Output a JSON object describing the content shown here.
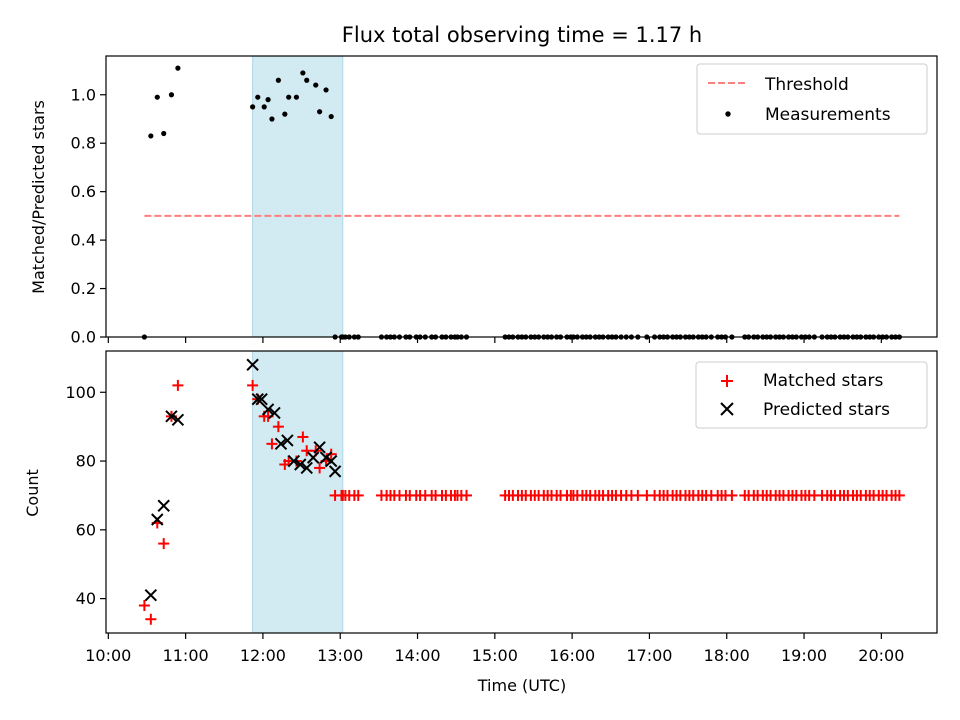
{
  "figure": {
    "title": "Flux total observing time = 1.17 h"
  },
  "chart_data": [
    {
      "type": "scatter",
      "panel": "top",
      "ylabel": "Matched/Predicted stars",
      "ylim": [
        0,
        1.16
      ],
      "xlim_hours": [
        9.97,
        20.72
      ],
      "yticks": [
        0.0,
        0.2,
        0.4,
        0.6,
        0.8,
        1.0
      ],
      "ytick_labels": [
        "0.0",
        "0.2",
        "0.4",
        "0.6",
        "0.8",
        "1.0"
      ],
      "legend_position": "top-right",
      "shaded_interval": {
        "from": "11:52",
        "to": "13:02",
        "color": "#add8e6"
      },
      "threshold": {
        "name": "Threshold",
        "y": 0.5,
        "from": "10:28",
        "to": "20:14",
        "color": "#ff7f7f"
      },
      "series": [
        {
          "name": "Measurements",
          "color": "#000000",
          "marker": "dot",
          "x": [
            "10:28",
            "10:33",
            "10:38",
            "10:43",
            "10:49",
            "10:54",
            "11:52",
            "11:56",
            "12:01",
            "12:04",
            "12:07",
            "12:12",
            "12:17",
            "12:20",
            "12:26",
            "12:31",
            "12:34",
            "12:41",
            "12:44",
            "12:49",
            "12:53",
            "12:56",
            "13:01",
            "13:02",
            "13:04",
            "13:07",
            "13:11",
            "13:14",
            "13:32",
            "13:36",
            "13:39",
            "13:42",
            "13:46",
            "13:51",
            "13:54",
            "13:59",
            "14:02",
            "14:06",
            "14:11",
            "14:14",
            "14:19",
            "14:22",
            "14:26",
            "14:29",
            "14:31",
            "14:34",
            "14:38",
            "15:08",
            "15:11",
            "15:14",
            "15:18",
            "15:21",
            "15:24",
            "15:28",
            "15:31",
            "15:34",
            "15:38",
            "15:41",
            "15:44",
            "15:48",
            "15:51",
            "15:56",
            "15:59",
            "16:01",
            "16:04",
            "16:08",
            "16:11",
            "16:14",
            "16:18",
            "16:21",
            "16:24",
            "16:28",
            "16:31",
            "16:34",
            "16:38",
            "16:42",
            "16:46",
            "16:51",
            "16:58",
            "17:04",
            "17:08",
            "17:11",
            "17:14",
            "17:18",
            "17:21",
            "17:24",
            "17:28",
            "17:31",
            "17:34",
            "17:38",
            "17:41",
            "17:44",
            "17:48",
            "17:53",
            "17:56",
            "17:59",
            "18:04",
            "18:14",
            "18:17",
            "18:21",
            "18:24",
            "18:28",
            "18:31",
            "18:34",
            "18:38",
            "18:41",
            "18:44",
            "18:48",
            "18:51",
            "18:54",
            "18:58",
            "19:01",
            "19:04",
            "19:08",
            "19:14",
            "19:18",
            "19:21",
            "19:24",
            "19:28",
            "19:31",
            "19:34",
            "19:38",
            "19:41",
            "19:44",
            "19:48",
            "19:51",
            "19:54",
            "19:58",
            "20:01",
            "20:04",
            "20:08",
            "20:11",
            "20:14"
          ],
          "y": [
            0.0,
            0.83,
            0.99,
            0.84,
            1.0,
            1.11,
            0.95,
            0.99,
            0.95,
            0.98,
            0.9,
            1.06,
            0.92,
            0.99,
            0.99,
            1.09,
            1.06,
            1.04,
            0.93,
            1.02,
            0.91,
            0.0,
            0.0,
            0.0,
            0.0,
            0.0,
            0.0,
            0.0,
            0.0,
            0.0,
            0.0,
            0.0,
            0.0,
            0.0,
            0.0,
            0.0,
            0.0,
            0.0,
            0.0,
            0.0,
            0.0,
            0.0,
            0.0,
            0.0,
            0.0,
            0.0,
            0.0,
            0.0,
            0.0,
            0.0,
            0.0,
            0.0,
            0.0,
            0.0,
            0.0,
            0.0,
            0.0,
            0.0,
            0.0,
            0.0,
            0.0,
            0.0,
            0.0,
            0.0,
            0.0,
            0.0,
            0.0,
            0.0,
            0.0,
            0.0,
            0.0,
            0.0,
            0.0,
            0.0,
            0.0,
            0.0,
            0.0,
            0.0,
            0.0,
            0.0,
            0.0,
            0.0,
            0.0,
            0.0,
            0.0,
            0.0,
            0.0,
            0.0,
            0.0,
            0.0,
            0.0,
            0.0,
            0.0,
            0.0,
            0.0,
            0.0,
            0.0,
            0.0,
            0.0,
            0.0,
            0.0,
            0.0,
            0.0,
            0.0,
            0.0,
            0.0,
            0.0,
            0.0,
            0.0,
            0.0,
            0.0,
            0.0,
            0.0,
            0.0,
            0.0,
            0.0,
            0.0,
            0.0,
            0.0,
            0.0,
            0.0,
            0.0,
            0.0,
            0.0,
            0.0,
            0.0,
            0.0,
            0.0,
            0.0,
            0.0,
            0.0,
            0.0,
            0.0
          ]
        }
      ]
    },
    {
      "type": "scatter",
      "panel": "bottom",
      "xlabel": "Time (UTC)",
      "ylabel": "Count",
      "ylim": [
        30,
        112
      ],
      "xlim_hours": [
        9.97,
        20.72
      ],
      "yticks": [
        40,
        60,
        80,
        100
      ],
      "ytick_labels": [
        "40",
        "60",
        "80",
        "100"
      ],
      "xticks": [
        "10:00",
        "11:00",
        "12:00",
        "13:00",
        "14:00",
        "15:00",
        "16:00",
        "17:00",
        "18:00",
        "19:00",
        "20:00"
      ],
      "legend_position": "top-right",
      "shaded_interval": {
        "from": "11:52",
        "to": "13:02",
        "color": "#add8e6"
      },
      "series": [
        {
          "name": "Matched stars",
          "color": "#ff0000",
          "marker": "plus",
          "x": [
            "10:28",
            "10:33",
            "10:38",
            "10:43",
            "10:49",
            "10:54",
            "11:52",
            "11:56",
            "12:01",
            "12:04",
            "12:07",
            "12:12",
            "12:17",
            "12:20",
            "12:26",
            "12:31",
            "12:34",
            "12:41",
            "12:44",
            "12:49",
            "12:53",
            "12:56",
            "13:01",
            "13:02",
            "13:04",
            "13:07",
            "13:11",
            "13:14",
            "13:32",
            "13:36",
            "13:39",
            "13:42",
            "13:46",
            "13:51",
            "13:54",
            "13:59",
            "14:02",
            "14:06",
            "14:11",
            "14:14",
            "14:19",
            "14:22",
            "14:26",
            "14:29",
            "14:31",
            "14:34",
            "14:38",
            "15:08",
            "15:11",
            "15:14",
            "15:18",
            "15:21",
            "15:24",
            "15:28",
            "15:31",
            "15:34",
            "15:38",
            "15:41",
            "15:44",
            "15:48",
            "15:51",
            "15:56",
            "15:59",
            "16:01",
            "16:04",
            "16:08",
            "16:11",
            "16:14",
            "16:18",
            "16:21",
            "16:24",
            "16:28",
            "16:31",
            "16:34",
            "16:38",
            "16:42",
            "16:46",
            "16:51",
            "16:58",
            "17:04",
            "17:08",
            "17:11",
            "17:14",
            "17:18",
            "17:21",
            "17:24",
            "17:28",
            "17:31",
            "17:34",
            "17:38",
            "17:41",
            "17:44",
            "17:48",
            "17:53",
            "17:56",
            "17:59",
            "18:04",
            "18:14",
            "18:17",
            "18:21",
            "18:24",
            "18:28",
            "18:31",
            "18:34",
            "18:38",
            "18:41",
            "18:44",
            "18:48",
            "18:51",
            "18:54",
            "18:58",
            "19:01",
            "19:04",
            "19:08",
            "19:14",
            "19:18",
            "19:21",
            "19:24",
            "19:28",
            "19:31",
            "19:34",
            "19:38",
            "19:41",
            "19:44",
            "19:48",
            "19:51",
            "19:54",
            "19:58",
            "20:01",
            "20:04",
            "20:08",
            "20:11",
            "20:14"
          ],
          "y": [
            38,
            34,
            62,
            56,
            93,
            102,
            102,
            98,
            93,
            93,
            85,
            90,
            79,
            80,
            80,
            87,
            83,
            83,
            78,
            80,
            82,
            70,
            70,
            70,
            70,
            70,
            70,
            70,
            70,
            70,
            70,
            70,
            70,
            70,
            70,
            70,
            70,
            70,
            70,
            70,
            70,
            70,
            70,
            70,
            70,
            70,
            70,
            70,
            70,
            70,
            70,
            70,
            70,
            70,
            70,
            70,
            70,
            70,
            70,
            70,
            70,
            70,
            70,
            70,
            70,
            70,
            70,
            70,
            70,
            70,
            70,
            70,
            70,
            70,
            70,
            70,
            70,
            70,
            70,
            70,
            70,
            70,
            70,
            70,
            70,
            70,
            70,
            70,
            70,
            70,
            70,
            70,
            70,
            70,
            70,
            70,
            70,
            70,
            70,
            70,
            70,
            70,
            70,
            70,
            70,
            70,
            70,
            70,
            70,
            70,
            70,
            70,
            70,
            70,
            70,
            70,
            70,
            70,
            70,
            70,
            70,
            70,
            70,
            70,
            70,
            70,
            70,
            70,
            70,
            70,
            70,
            70,
            70
          ]
        },
        {
          "name": "Predicted stars",
          "color": "#000000",
          "marker": "x",
          "x": [
            "10:33",
            "10:38",
            "10:43",
            "10:49",
            "10:54",
            "11:52",
            "11:56",
            "11:59",
            "12:04",
            "12:09",
            "12:14",
            "12:19",
            "12:24",
            "12:29",
            "12:34",
            "12:39",
            "12:44",
            "12:49",
            "12:53",
            "12:56"
          ],
          "y": [
            41,
            63,
            67,
            93,
            92,
            108,
            98,
            98,
            95,
            94,
            85,
            86,
            80,
            79,
            78,
            81,
            84,
            81,
            80,
            77
          ]
        }
      ]
    }
  ]
}
